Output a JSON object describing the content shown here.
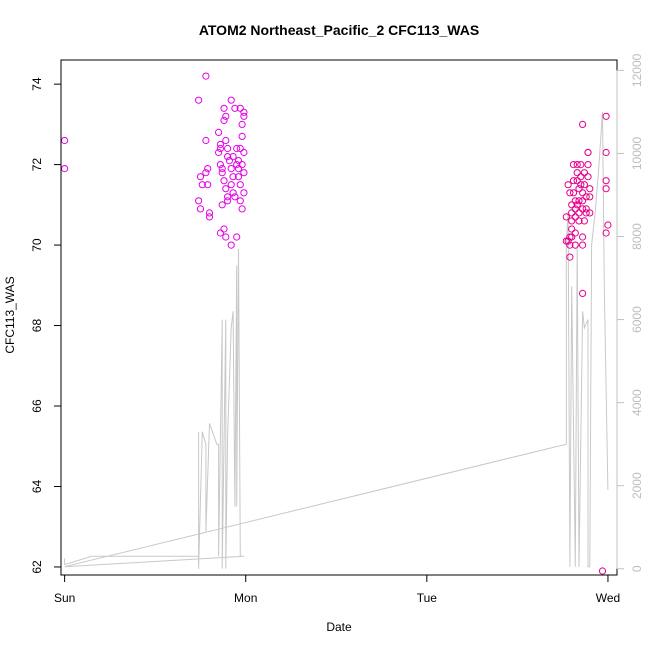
{
  "chart_data": {
    "type": "scatter",
    "title": "ATOM2 Northeast_Pacific_2 CFC113_WAS",
    "xlabel": "Date",
    "ylabel": "CFC113_WAS",
    "x_tick_labels": [
      "Sun",
      "Mon",
      "Tue",
      "Wed"
    ],
    "xlim": [
      -0.02,
      3.05
    ],
    "ylim": [
      61.8,
      74.6
    ],
    "y_ticks": [
      62,
      64,
      66,
      68,
      70,
      72,
      74
    ],
    "y2lim": [
      -150,
      12250
    ],
    "y2_ticks": [
      0,
      2000,
      4000,
      6000,
      8000,
      10000,
      12000
    ],
    "points_color": "#e600e6",
    "points_color_end": "#e6008c",
    "line_color": "#c8c8c8",
    "right_axis_color": "#c0c0c0",
    "grid": false,
    "series": [
      {
        "values_xy": [
          [
            0.0,
            72.6
          ],
          [
            0.0,
            71.9
          ],
          [
            0.74,
            73.6
          ],
          [
            0.78,
            74.2
          ],
          [
            0.75,
            71.7
          ],
          [
            0.76,
            71.5
          ],
          [
            0.74,
            71.1
          ],
          [
            0.75,
            70.9
          ],
          [
            0.78,
            72.6
          ],
          [
            0.79,
            71.9
          ],
          [
            0.78,
            71.8
          ],
          [
            0.79,
            71.5
          ],
          [
            0.8,
            70.8
          ],
          [
            0.8,
            70.7
          ],
          [
            0.85,
            72.8
          ],
          [
            0.86,
            72.5
          ],
          [
            0.86,
            72.4
          ],
          [
            0.85,
            72.3
          ],
          [
            0.86,
            72.0
          ],
          [
            0.87,
            71.9
          ],
          [
            0.88,
            73.4
          ],
          [
            0.89,
            73.2
          ],
          [
            0.88,
            73.1
          ],
          [
            0.89,
            72.6
          ],
          [
            0.9,
            72.4
          ],
          [
            0.9,
            72.2
          ],
          [
            0.87,
            71.8
          ],
          [
            0.88,
            71.6
          ],
          [
            0.89,
            71.4
          ],
          [
            0.9,
            71.2
          ],
          [
            0.87,
            71.0
          ],
          [
            0.9,
            71.1
          ],
          [
            0.86,
            70.3
          ],
          [
            0.88,
            70.4
          ],
          [
            0.89,
            70.2
          ],
          [
            0.92,
            70.0
          ],
          [
            0.95,
            70.2
          ],
          [
            0.91,
            72.1
          ],
          [
            0.92,
            71.9
          ],
          [
            0.93,
            71.7
          ],
          [
            0.92,
            71.5
          ],
          [
            0.93,
            71.3
          ],
          [
            0.94,
            71.2
          ],
          [
            0.92,
            73.6
          ],
          [
            0.94,
            73.4
          ],
          [
            0.93,
            72.2
          ],
          [
            0.95,
            72.4
          ],
          [
            0.95,
            72.0
          ],
          [
            0.96,
            71.7
          ],
          [
            0.97,
            73.4
          ],
          [
            0.98,
            73.0
          ],
          [
            0.98,
            72.7
          ],
          [
            0.97,
            72.4
          ],
          [
            0.99,
            72.3
          ],
          [
            0.98,
            72.0
          ],
          [
            0.99,
            71.8
          ],
          [
            0.97,
            71.5
          ],
          [
            0.99,
            71.3
          ],
          [
            0.99,
            73.3
          ],
          [
            0.99,
            73.2
          ],
          [
            0.98,
            70.9
          ],
          [
            0.96,
            71.9
          ],
          [
            0.97,
            71.1
          ],
          [
            0.96,
            72.1
          ],
          [
            2.77,
            70.7
          ],
          [
            2.77,
            70.1
          ],
          [
            2.78,
            70.1
          ],
          [
            2.79,
            69.7
          ],
          [
            2.79,
            70.0
          ],
          [
            2.79,
            70.2
          ],
          [
            2.79,
            71.3
          ],
          [
            2.8,
            71.0
          ],
          [
            2.8,
            70.8
          ],
          [
            2.8,
            70.6
          ],
          [
            2.8,
            70.4
          ],
          [
            2.8,
            70.2
          ],
          [
            2.81,
            71.6
          ],
          [
            2.81,
            71.3
          ],
          [
            2.82,
            71.1
          ],
          [
            2.82,
            70.9
          ],
          [
            2.82,
            70.7
          ],
          [
            2.82,
            70.3
          ],
          [
            2.82,
            70.0
          ],
          [
            2.83,
            72.0
          ],
          [
            2.83,
            71.8
          ],
          [
            2.83,
            71.6
          ],
          [
            2.84,
            71.4
          ],
          [
            2.84,
            71.1
          ],
          [
            2.84,
            70.8
          ],
          [
            2.84,
            70.6
          ],
          [
            2.85,
            72.0
          ],
          [
            2.85,
            71.5
          ],
          [
            2.86,
            71.3
          ],
          [
            2.86,
            71.1
          ],
          [
            2.86,
            70.9
          ],
          [
            2.86,
            70.2
          ],
          [
            2.86,
            70.0
          ],
          [
            2.86,
            73.0
          ],
          [
            2.87,
            71.8
          ],
          [
            2.87,
            71.5
          ],
          [
            2.88,
            71.2
          ],
          [
            2.88,
            70.9
          ],
          [
            2.88,
            70.8
          ],
          [
            2.89,
            72.3
          ],
          [
            2.89,
            72.0
          ],
          [
            2.89,
            71.7
          ],
          [
            2.89,
            72.3
          ],
          [
            2.9,
            71.4
          ],
          [
            2.9,
            71.2
          ],
          [
            2.9,
            70.8
          ],
          [
            2.86,
            68.8
          ],
          [
            2.97,
            61.9
          ],
          [
            2.99,
            73.2
          ],
          [
            2.99,
            72.3
          ],
          [
            2.99,
            71.6
          ],
          [
            2.99,
            71.4
          ],
          [
            3.0,
            70.5
          ],
          [
            2.99,
            70.3
          ],
          [
            2.78,
            71.5
          ],
          [
            2.81,
            72.0
          ],
          [
            2.83,
            71.0
          ],
          [
            2.85,
            71.7
          ],
          [
            2.87,
            70.6
          ]
        ]
      },
      {
        "axis": "right",
        "values_xy": [
          [
            0.0,
            250
          ],
          [
            0.0,
            100
          ],
          [
            0.15,
            300
          ],
          [
            0.74,
            300
          ],
          [
            0.74,
            3300
          ],
          [
            0.74,
            0
          ],
          [
            0.76,
            3300
          ],
          [
            0.78,
            3000
          ],
          [
            0.78,
            900
          ],
          [
            0.8,
            3500
          ],
          [
            0.84,
            3000
          ],
          [
            0.85,
            3000
          ],
          [
            0.85,
            300
          ],
          [
            0.87,
            6000
          ],
          [
            0.87,
            0
          ],
          [
            0.89,
            6000
          ],
          [
            0.89,
            0
          ],
          [
            0.9,
            3200
          ],
          [
            0.92,
            5800
          ],
          [
            0.93,
            6200
          ],
          [
            0.94,
            1500
          ],
          [
            0.95,
            7300
          ],
          [
            0.95,
            1500
          ],
          [
            0.96,
            7700
          ],
          [
            0.97,
            300
          ],
          [
            0.99,
            300
          ],
          [
            0.0,
            50
          ],
          [
            2.77,
            3000
          ],
          [
            2.77,
            7800
          ],
          [
            2.78,
            8600
          ],
          [
            2.79,
            50
          ],
          [
            2.8,
            6800
          ],
          [
            2.82,
            50
          ],
          [
            2.83,
            7800
          ],
          [
            2.84,
            50
          ],
          [
            2.86,
            6200
          ],
          [
            2.87,
            5800
          ],
          [
            2.89,
            6000
          ],
          [
            2.89,
            50
          ],
          [
            2.9,
            50
          ],
          [
            2.91,
            7800
          ],
          [
            2.93,
            8600
          ],
          [
            2.95,
            9700
          ],
          [
            2.97,
            11000
          ],
          [
            2.98,
            6800
          ],
          [
            3.0,
            1900
          ]
        ]
      }
    ]
  }
}
